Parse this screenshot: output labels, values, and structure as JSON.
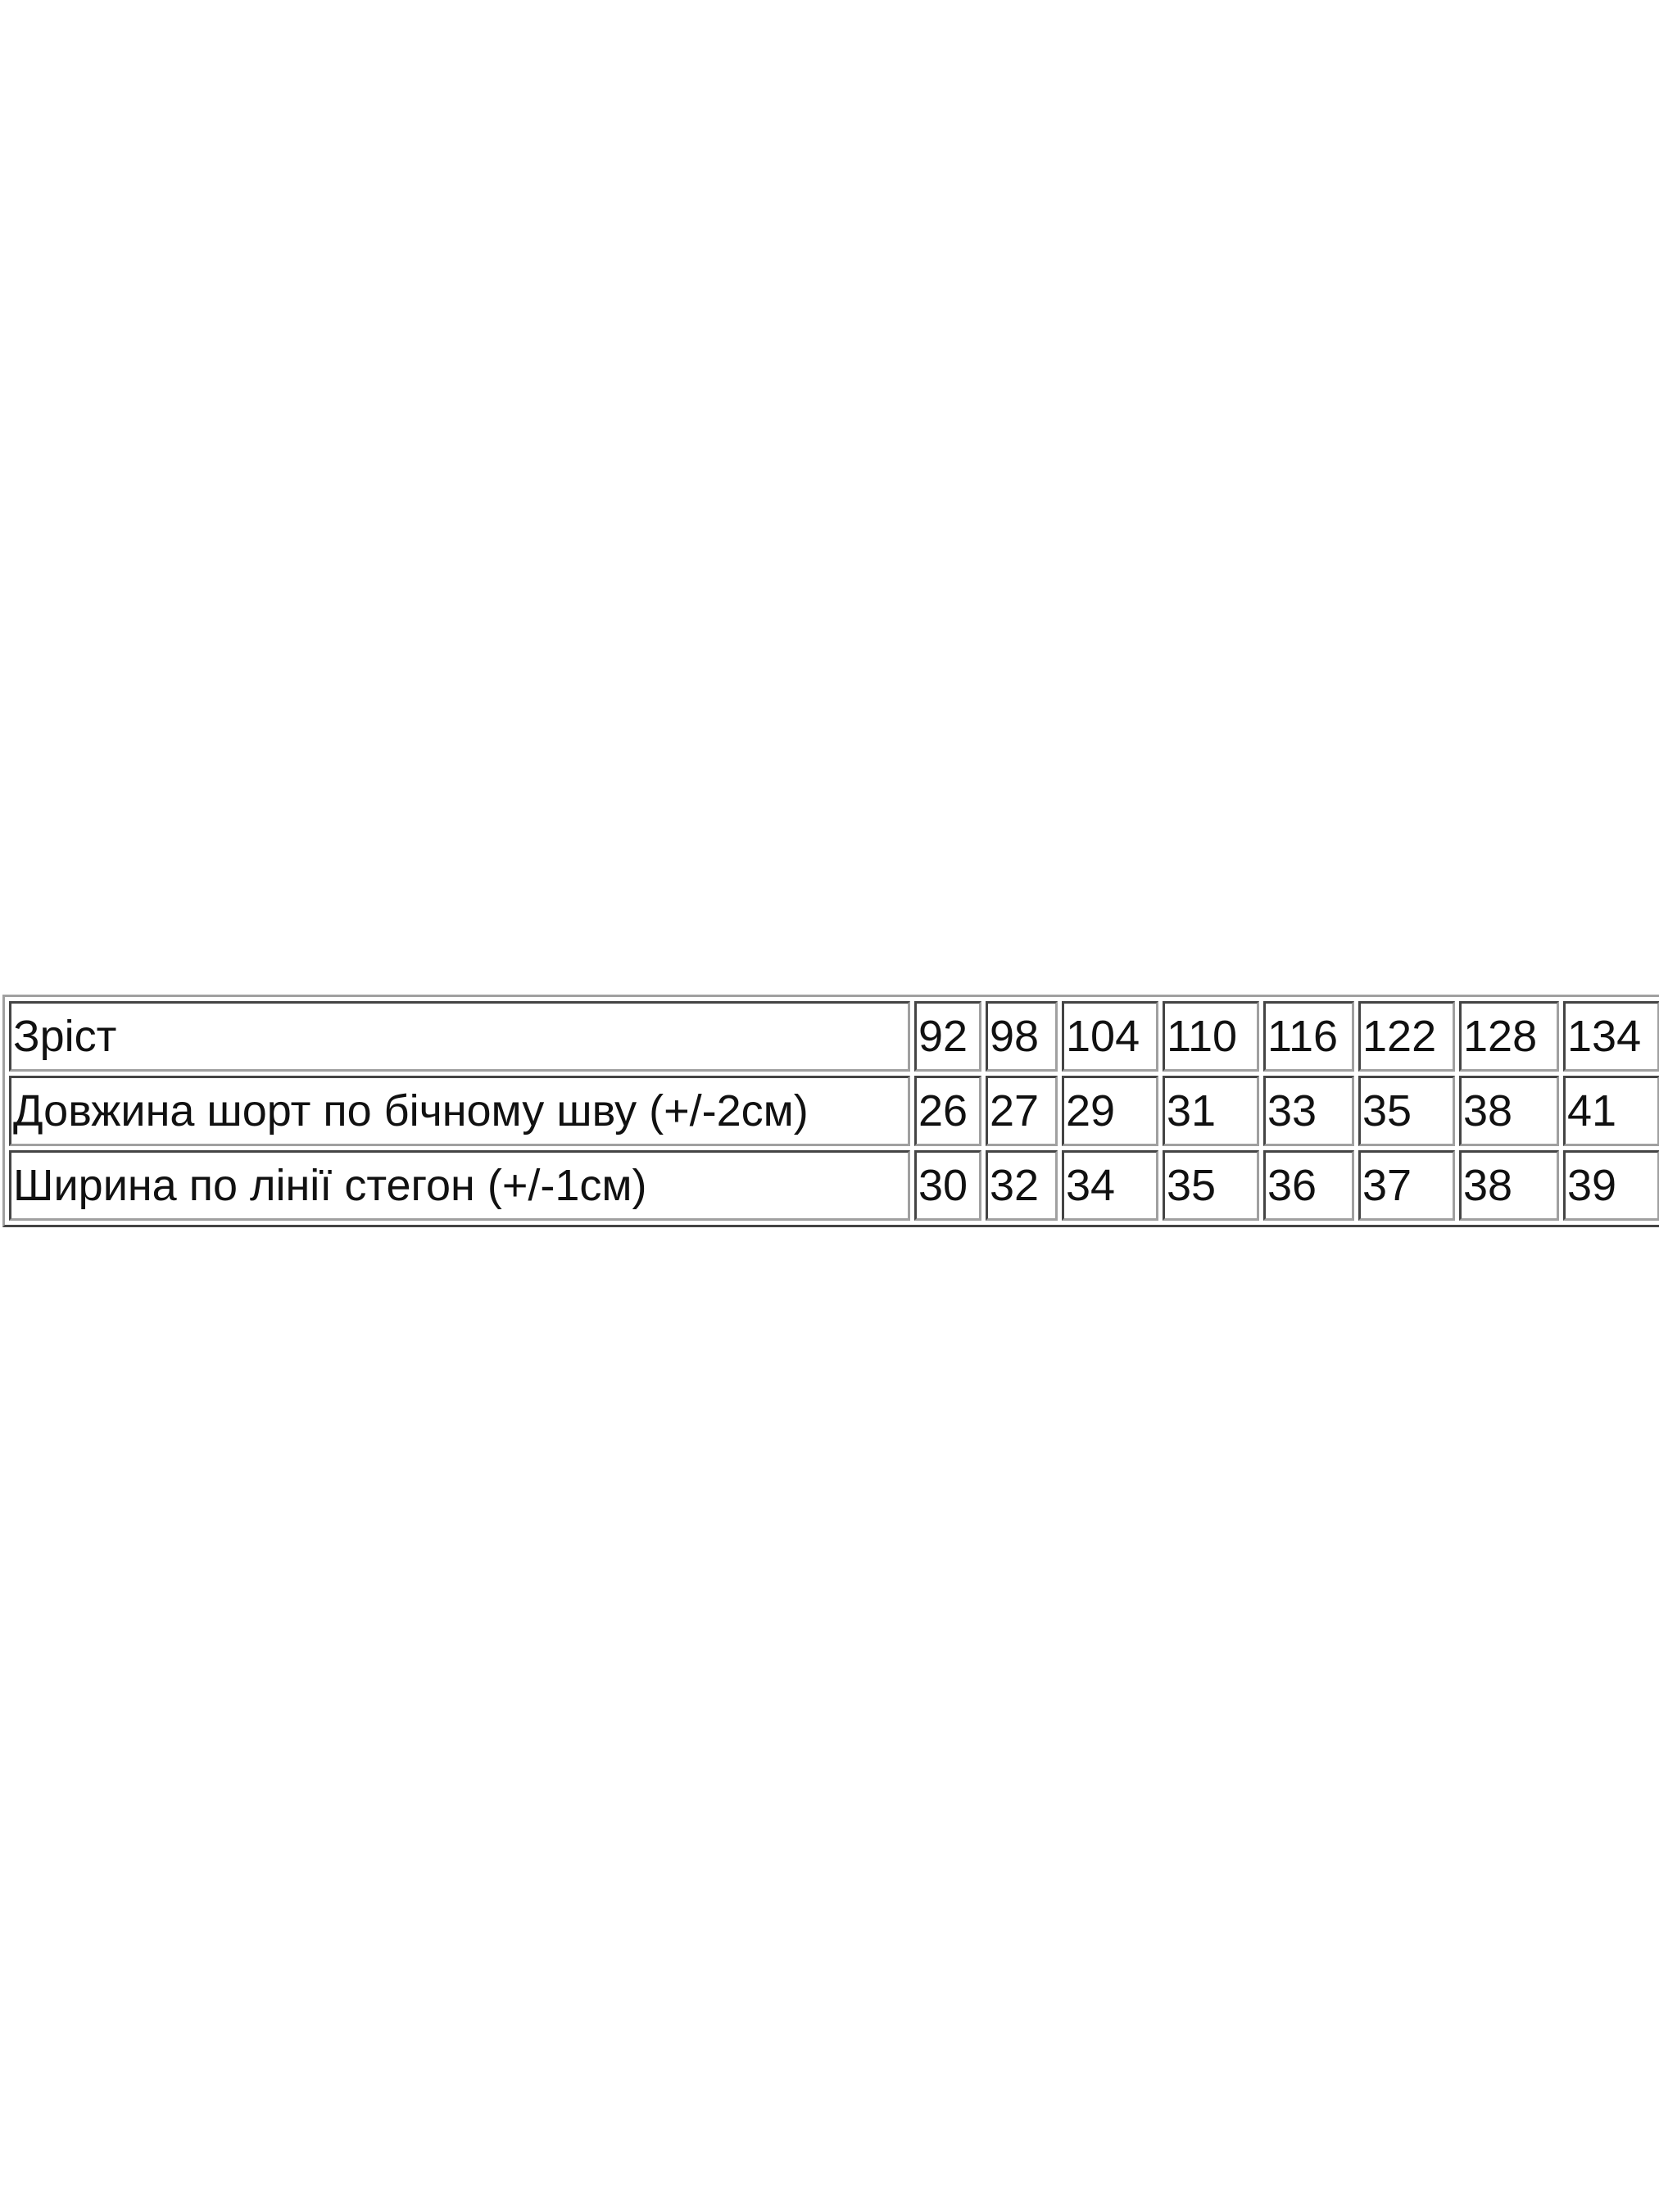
{
  "size_table": {
    "rows": [
      {
        "label": "Зріст",
        "values": [
          "92",
          "98",
          "104",
          "110",
          "116",
          "122",
          "128",
          "134"
        ]
      },
      {
        "label": "Довжина шорт по бічному шву (+/-2см)",
        "values": [
          "26",
          "27",
          "29",
          "31",
          "33",
          "35",
          "38",
          "41"
        ]
      },
      {
        "label": "Ширина по лінії стегон (+/-1см)",
        "values": [
          "30",
          "32",
          "34",
          "35",
          "36",
          "37",
          "38",
          "39"
        ]
      }
    ]
  }
}
